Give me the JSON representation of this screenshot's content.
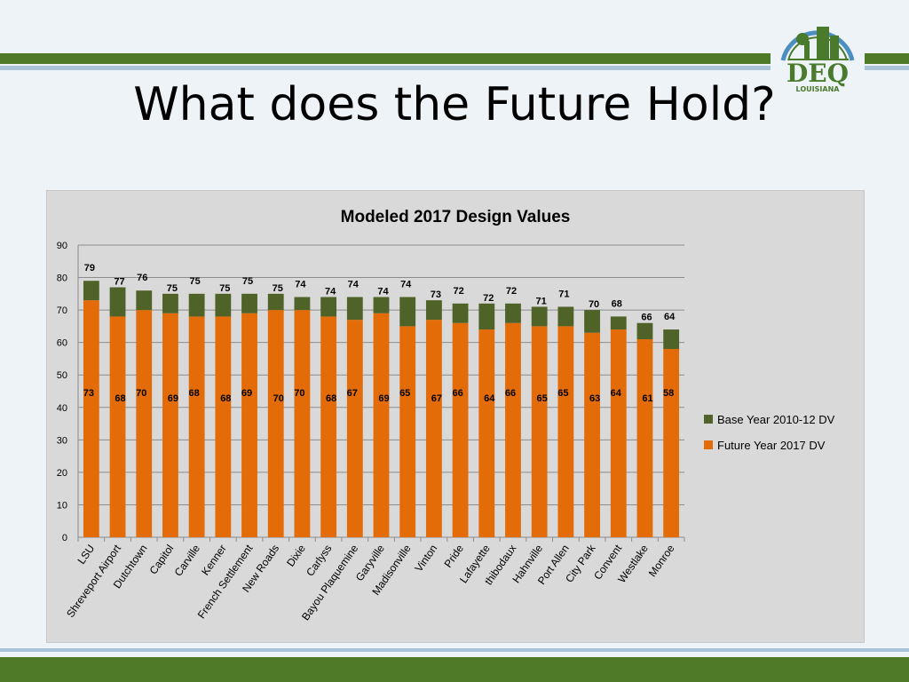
{
  "slide": {
    "title": "What does the Future Hold?",
    "logo_text": "DEQ",
    "logo_subtext": "LOUISIANA"
  },
  "colors": {
    "band_green": "#4f7a28",
    "band_blue": "#a9c4d9",
    "base_series": "#4f6228",
    "future_series": "#e36c09",
    "logo_green": "#4a7a2c",
    "logo_blue": "#4a8fbf"
  },
  "chart_data": {
    "type": "bar",
    "title": "Modeled 2017 Design Values",
    "xlabel": "",
    "ylabel": "",
    "ylim": [
      0,
      90
    ],
    "yticks": [
      0,
      10,
      20,
      30,
      40,
      50,
      60,
      70,
      80,
      90
    ],
    "grid": true,
    "legend": "right",
    "categories": [
      "LSU",
      "Shreveport Airport",
      "Dutchtown",
      "Capitol",
      "Carville",
      "Kenner",
      "French Settlement",
      "New Roads",
      "Dixie",
      "Carlyss",
      "Bayou Plaquemine",
      "Garyville",
      "Madisonville",
      "Vinton",
      "Pride",
      "Lafayette",
      "thibodaux",
      "Hahnville",
      "Port Allen",
      "City Park",
      "Convent",
      "Westlake",
      "Monroe"
    ],
    "series": [
      {
        "name": "Base Year 2010-12 DV",
        "values": [
          79,
          77,
          76,
          75,
          75,
          75,
          75,
          75,
          74,
          74,
          74,
          74,
          74,
          73,
          72,
          72,
          72,
          71,
          71,
          70,
          68,
          66,
          64
        ]
      },
      {
        "name": "Future Year 2017 DV",
        "values": [
          73,
          68,
          70,
          69,
          68,
          68,
          69,
          70,
          70,
          68,
          67,
          69,
          65,
          67,
          66,
          64,
          66,
          65,
          65,
          63,
          64,
          61,
          58
        ]
      }
    ]
  }
}
